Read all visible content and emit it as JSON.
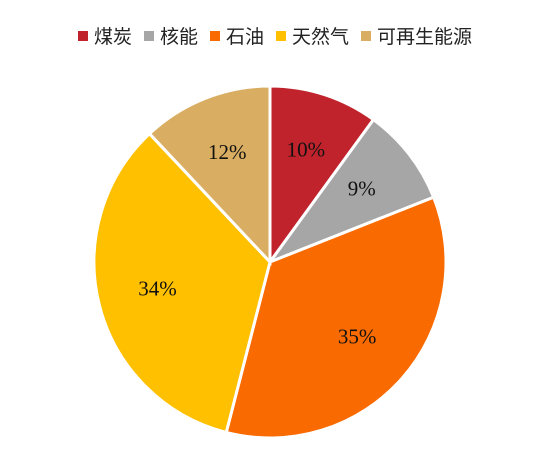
{
  "chart_data": {
    "type": "pie",
    "legend_position": "top",
    "slices": [
      {
        "name": "煤炭",
        "value": 10,
        "label": "10%",
        "color": "#C0232C"
      },
      {
        "name": "核能",
        "value": 9,
        "label": "9%",
        "color": "#A6A6A6"
      },
      {
        "name": "石油",
        "value": 35,
        "label": "35%",
        "color": "#F96A00"
      },
      {
        "name": "天然气",
        "value": 34,
        "label": "34%",
        "color": "#FFC000"
      },
      {
        "name": "可再生能源",
        "value": 12,
        "label": "12%",
        "color": "#D9AE62"
      }
    ]
  }
}
